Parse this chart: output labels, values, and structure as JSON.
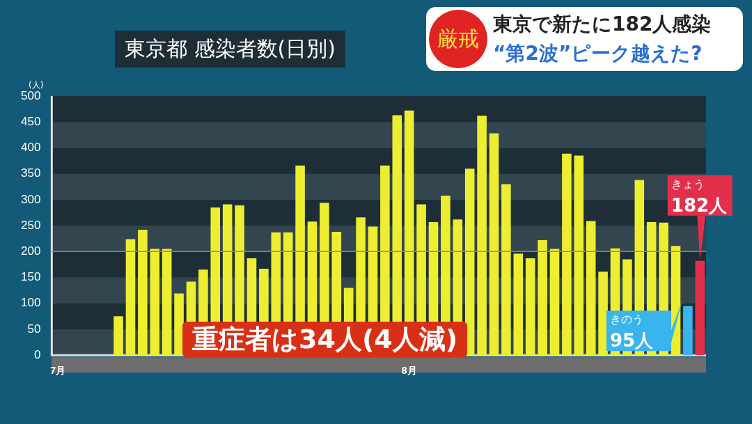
{
  "chart_data": {
    "type": "bar",
    "title": "東京都 感染者数(日別)",
    "ylabel": "(人)",
    "categories": [
      "7月",
      null,
      null,
      null,
      null,
      null,
      null,
      null,
      null,
      null,
      null,
      null,
      null,
      null,
      null,
      null,
      null,
      null,
      null,
      null,
      null,
      null,
      null,
      null,
      null,
      null,
      null,
      null,
      null,
      "8月",
      null,
      null,
      null,
      null,
      null,
      null,
      null,
      null,
      null,
      null,
      null,
      null,
      null,
      null,
      null,
      null,
      null,
      null,
      null,
      null,
      null,
      null,
      null,
      null
    ],
    "values": [
      null,
      null,
      null,
      null,
      null,
      75,
      224,
      242,
      205,
      205,
      119,
      142,
      165,
      285,
      291,
      289,
      187,
      167,
      237,
      237,
      366,
      258,
      294,
      238,
      130,
      266,
      248,
      366,
      463,
      472,
      291,
      257,
      308,
      262,
      360,
      462,
      428,
      330,
      196,
      187,
      222,
      205,
      389,
      385,
      259,
      161,
      206,
      185,
      338,
      257,
      256,
      211,
      95,
      182
    ],
    "colors": [
      "#eeee30",
      "#eeee30",
      "#eeee30",
      "#eeee30",
      "#eeee30",
      "#eeee30",
      "#eeee30",
      "#eeee30",
      "#eeee30",
      "#eeee30",
      "#eeee30",
      "#eeee30",
      "#eeee30",
      "#eeee30",
      "#eeee30",
      "#eeee30",
      "#eeee30",
      "#eeee30",
      "#eeee30",
      "#eeee30",
      "#eeee30",
      "#eeee30",
      "#eeee30",
      "#eeee30",
      "#eeee30",
      "#eeee30",
      "#eeee30",
      "#eeee30",
      "#eeee30",
      "#eeee30",
      "#eeee30",
      "#eeee30",
      "#eeee30",
      "#eeee30",
      "#eeee30",
      "#eeee30",
      "#eeee30",
      "#eeee30",
      "#eeee30",
      "#eeee30",
      "#eeee30",
      "#eeee30",
      "#eeee30",
      "#eeee30",
      "#eeee30",
      "#eeee30",
      "#eeee30",
      "#eeee30",
      "#eeee30",
      "#eeee30",
      "#eeee30",
      "#eeee30",
      "#3ab4ec",
      "#e2304c"
    ],
    "value_labels": [
      null,
      null,
      null,
      null,
      null,
      null,
      null,
      null,
      null,
      null,
      null,
      null,
      null,
      null,
      null,
      null,
      null,
      null,
      null,
      null,
      null,
      null,
      null,
      null,
      null,
      null,
      null,
      null,
      null,
      null,
      null,
      null,
      null,
      null,
      null,
      null,
      null,
      null,
      null,
      null,
      null,
      null,
      null,
      null,
      null,
      null,
      null,
      null,
      null,
      null,
      null,
      null,
      "きのう 95人",
      "きょう 182人"
    ],
    "ylim": [
      0,
      500
    ],
    "yticks": [
      0,
      50,
      100,
      150,
      200,
      250,
      300,
      350,
      400,
      450,
      500
    ],
    "ref_lines": [
      {
        "axis": "y",
        "value": 200,
        "color": "#d8703c"
      }
    ],
    "legend": false,
    "annotations": [
      "厳戒",
      "東京で新たに182人感染",
      "“第2波”ピーク越えた?",
      "重症者は34人(4人減)"
    ]
  }
}
